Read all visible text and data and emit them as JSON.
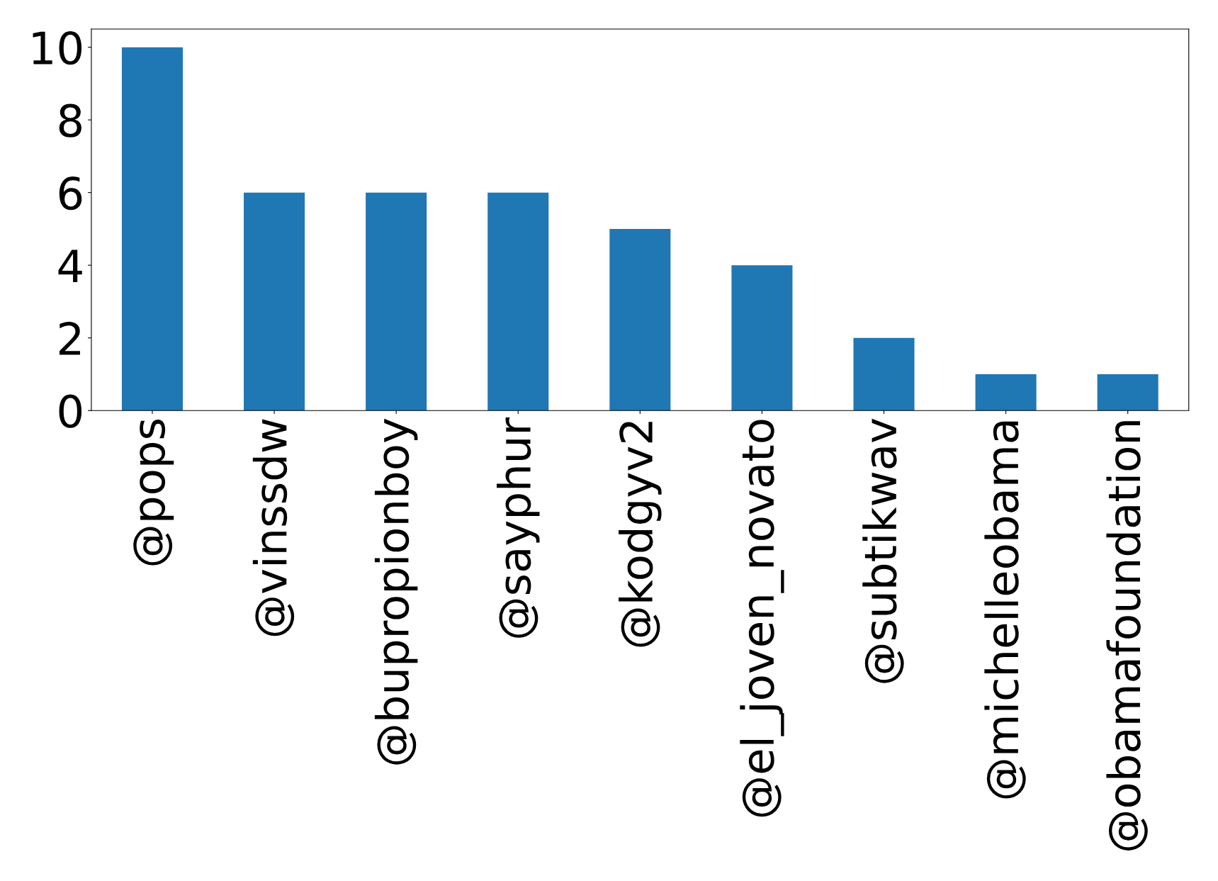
{
  "chart_data": {
    "type": "bar",
    "categories": [
      "@pops",
      "@vinssdw",
      "@bupropionboy",
      "@sayphur",
      "@kodgyv2",
      "@el_joven_novato",
      "@subtikwav",
      "@michelleobama",
      "@obamafoundation"
    ],
    "values": [
      10,
      6,
      6,
      6,
      5,
      4,
      2,
      1,
      1
    ],
    "color": "#1f77b4",
    "ylim": [
      0,
      10.5
    ],
    "yticks": [
      0,
      2,
      4,
      6,
      8,
      10
    ],
    "grid": false,
    "legend": false
  }
}
